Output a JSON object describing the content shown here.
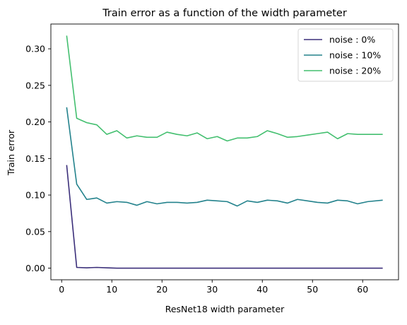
{
  "chart_data": {
    "type": "line",
    "title": "Train error as a function of the width parameter",
    "xlabel": "ResNet18 width parameter",
    "ylabel": "Train error",
    "xlim": [
      -2.15,
      67.15
    ],
    "ylim": [
      -0.0159,
      0.3339
    ],
    "xticks": [
      0,
      10,
      20,
      30,
      40,
      50,
      60
    ],
    "xtick_labels": [
      "0",
      "10",
      "20",
      "30",
      "40",
      "50",
      "60"
    ],
    "yticks": [
      0.0,
      0.05,
      0.1,
      0.15,
      0.2,
      0.25,
      0.3
    ],
    "ytick_labels": [
      "0.00",
      "0.05",
      "0.10",
      "0.15",
      "0.20",
      "0.25",
      "0.30"
    ],
    "grid": false,
    "legend_position": "top-right",
    "x": [
      1,
      3,
      5,
      7,
      9,
      11,
      13,
      15,
      17,
      19,
      21,
      23,
      25,
      27,
      29,
      31,
      33,
      35,
      37,
      39,
      41,
      43,
      45,
      47,
      49,
      51,
      53,
      55,
      57,
      59,
      61,
      64
    ],
    "series": [
      {
        "name": "noise : 0%",
        "color": "#3b2f7a",
        "values": [
          0.141,
          0.001,
          0.0005,
          0.001,
          0.0005,
          0,
          0,
          0,
          0,
          0,
          0,
          0,
          0,
          0,
          0,
          0,
          0,
          0,
          0,
          0,
          0,
          0,
          0,
          0,
          0,
          0,
          0,
          0,
          0,
          0,
          0,
          0
        ]
      },
      {
        "name": "noise : 10%",
        "color": "#23828c",
        "values": [
          0.22,
          0.115,
          0.094,
          0.096,
          0.089,
          0.091,
          0.09,
          0.086,
          0.091,
          0.088,
          0.09,
          0.09,
          0.089,
          0.09,
          0.093,
          0.092,
          0.091,
          0.085,
          0.092,
          0.09,
          0.093,
          0.092,
          0.089,
          0.094,
          0.092,
          0.09,
          0.089,
          0.093,
          0.092,
          0.088,
          0.091,
          0.093
        ]
      },
      {
        "name": "noise : 20%",
        "color": "#43bf6f",
        "values": [
          0.318,
          0.205,
          0.199,
          0.196,
          0.183,
          0.188,
          0.178,
          0.181,
          0.179,
          0.179,
          0.186,
          0.183,
          0.181,
          0.185,
          0.177,
          0.18,
          0.174,
          0.178,
          0.178,
          0.18,
          0.188,
          0.184,
          0.179,
          0.18,
          0.182,
          0.184,
          0.186,
          0.177,
          0.184,
          0.183,
          0.183,
          0.183
        ]
      }
    ]
  }
}
